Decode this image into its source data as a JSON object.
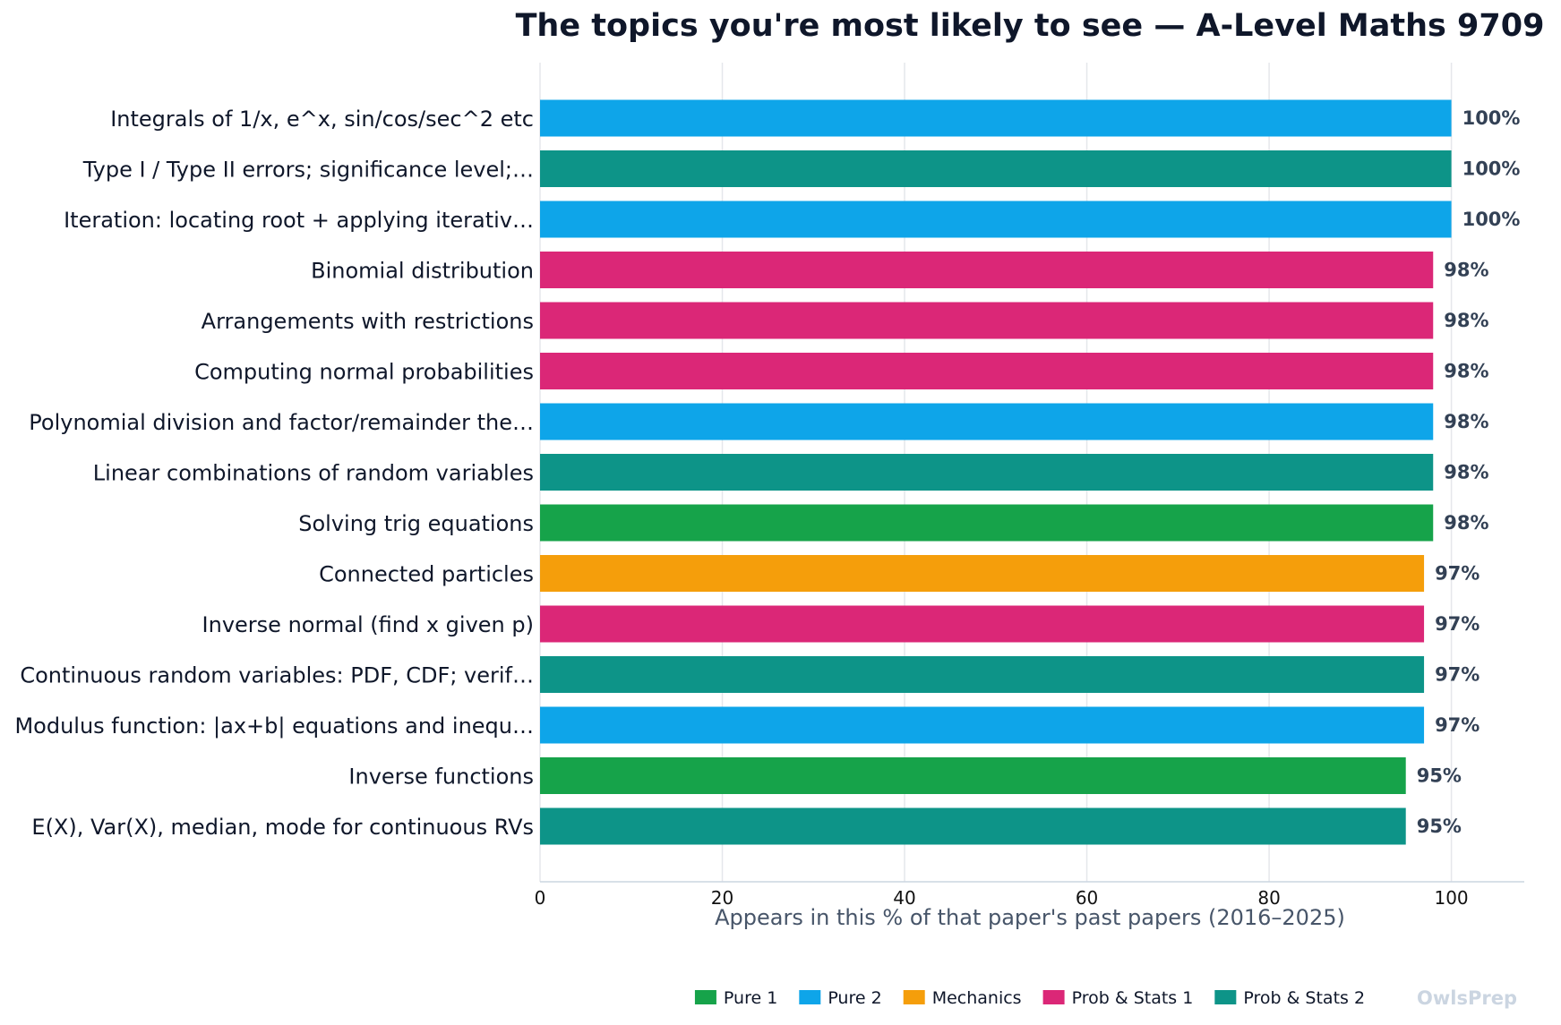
{
  "chart_data": {
    "type": "bar",
    "orientation": "horizontal",
    "title": "The topics you're most likely to see — A-Level Maths 9709",
    "xlabel": "Appears in this % of that paper's past papers (2016–2025)",
    "ylabel": "",
    "xlim": [
      0,
      108
    ],
    "xticks": [
      0,
      20,
      40,
      60,
      80,
      100
    ],
    "grid": "vertical",
    "legend_position": "bottom",
    "categories": [
      "Integrals of 1/x, e^x, sin/cos/sec^2 etc",
      "Type I / Type II errors; significance level;…",
      "Iteration: locating root + applying iterativ…",
      "Binomial distribution",
      "Arrangements with restrictions",
      "Computing normal probabilities",
      "Polynomial division and factor/remainder the…",
      "Linear combinations of random variables",
      "Solving trig equations",
      "Connected particles",
      "Inverse normal (find x given p)",
      "Continuous random variables: PDF, CDF; verif…",
      "Modulus function: |ax+b| equations and inequ…",
      "Inverse functions",
      "E(X), Var(X), median, mode for continuous RVs"
    ],
    "values": [
      100,
      100,
      100,
      98,
      98,
      98,
      98,
      98,
      98,
      97,
      97,
      97,
      97,
      95,
      95
    ],
    "value_labels": [
      "100%",
      "100%",
      "100%",
      "98%",
      "98%",
      "98%",
      "98%",
      "98%",
      "98%",
      "97%",
      "97%",
      "97%",
      "97%",
      "95%",
      "95%"
    ],
    "groups": [
      "Pure 2",
      "Prob & Stats 2",
      "Pure 2",
      "Prob & Stats 1",
      "Prob & Stats 1",
      "Prob & Stats 1",
      "Pure 2",
      "Prob & Stats 2",
      "Pure 1",
      "Mechanics",
      "Prob & Stats 1",
      "Prob & Stats 2",
      "Pure 2",
      "Pure 1",
      "Prob & Stats 2"
    ],
    "legend": [
      {
        "name": "Pure 1",
        "color": "#16a34a"
      },
      {
        "name": "Pure 2",
        "color": "#0ea5e9"
      },
      {
        "name": "Mechanics",
        "color": "#f59e0b"
      },
      {
        "name": "Prob & Stats 1",
        "color": "#db2777"
      },
      {
        "name": "Prob & Stats 2",
        "color": "#0d9488"
      }
    ]
  },
  "watermark": "OwlsPrep"
}
